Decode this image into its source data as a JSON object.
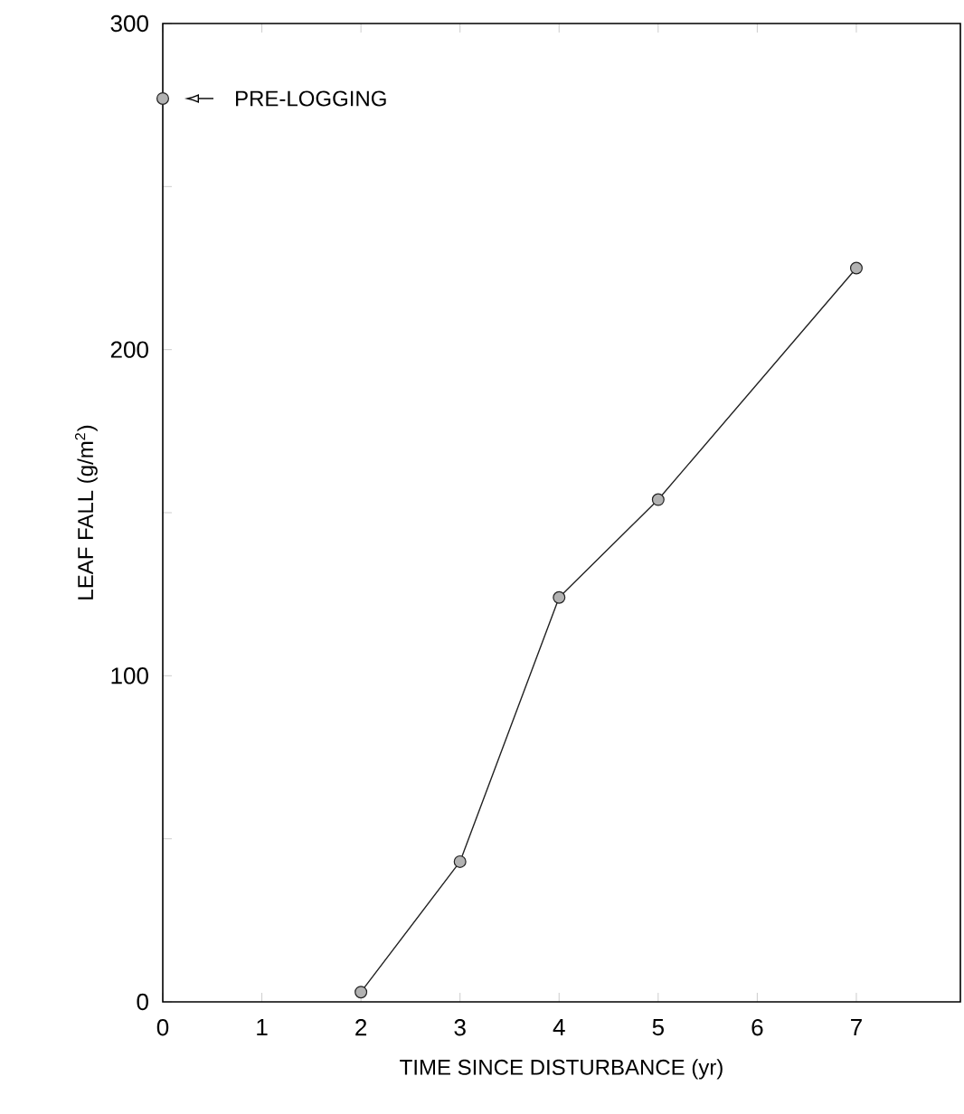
{
  "chart_data": {
    "type": "line",
    "xlabel": "TIME SINCE DISTURBANCE (yr)",
    "ylabel": "LEAF FALL (g/m$^{2}$)",
    "annotations": [
      "PRE-LOGGING"
    ],
    "series": [
      {
        "color": "#222222",
        "x": [
          2,
          3,
          4,
          5,
          7
        ],
        "values": [
          3,
          43,
          124,
          154,
          225
        ]
      },
      {
        "type": "scatter",
        "color": "#222222",
        "x": [
          0
        ],
        "values": [
          277
        ]
      }
    ],
    "marker": "circle",
    "xlim": [
      0,
      8.05
    ],
    "xticks": [
      0,
      1,
      2,
      3,
      4,
      5,
      6,
      7
    ],
    "ylim": [
      0,
      300
    ],
    "yticks": [
      0,
      {
        "value": 50,
        "label": null
      },
      100,
      {
        "value": 150,
        "label": null
      },
      200,
      {
        "value": 250,
        "label": null
      },
      300
    ]
  }
}
